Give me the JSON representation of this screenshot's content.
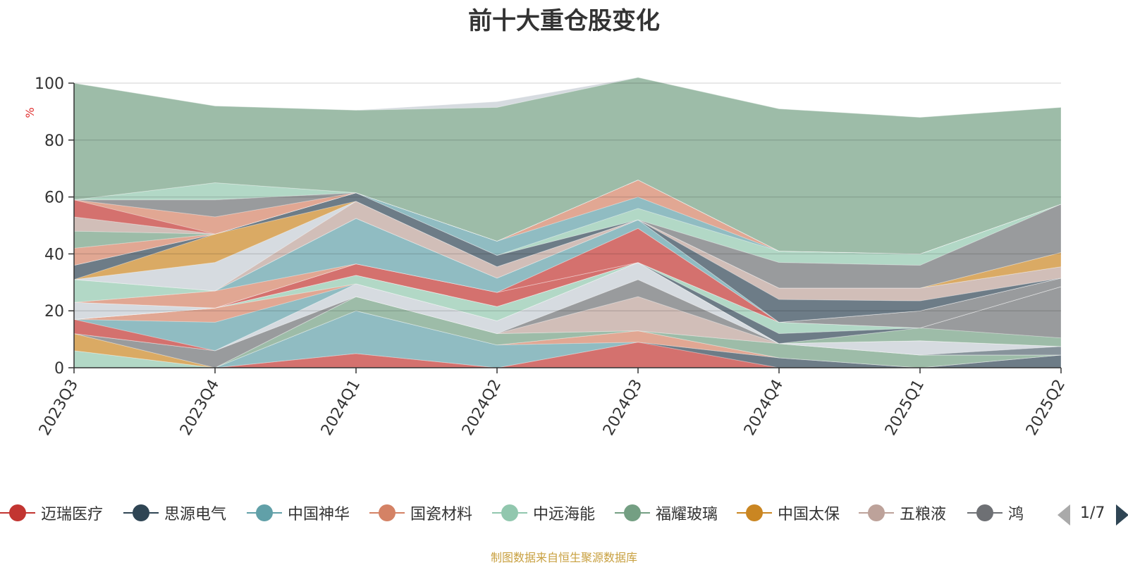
{
  "title": "前十大重仓股变化",
  "source": "制图数据来自恒生聚源数据库",
  "pager": {
    "text": "1/7"
  },
  "legend": {
    "items": [
      {
        "name": "迈瑞医疗",
        "color": "#c23531"
      },
      {
        "name": "思源电气",
        "color": "#2f4554"
      },
      {
        "name": "中国神华",
        "color": "#61a0a8"
      },
      {
        "name": "国瓷材料",
        "color": "#d48265"
      },
      {
        "name": "中远海能",
        "color": "#91c7ae"
      },
      {
        "name": "福耀玻璃",
        "color": "#749f83"
      },
      {
        "name": "中国太保",
        "color": "#ca8622"
      },
      {
        "name": "五粮液",
        "color": "#bda29a"
      },
      {
        "name": "鸿",
        "color": "#6e7074"
      }
    ]
  },
  "chart_data": {
    "type": "area",
    "stacked": true,
    "title": "前十大重仓股变化",
    "ylabel": "%",
    "ylim": [
      0,
      100
    ],
    "yticks": [
      0,
      20,
      40,
      60,
      80,
      100
    ],
    "grid": true,
    "categories": [
      "2023Q3",
      "2023Q4",
      "2024Q1",
      "2024Q2",
      "2024Q3",
      "2024Q4",
      "2025Q1",
      "2025Q2"
    ],
    "series": [
      {
        "name": "迈瑞医疗",
        "color": "#c23531",
        "values": [
          0,
          0,
          5,
          0,
          9,
          0,
          0,
          0
        ]
      },
      {
        "name": "思源电气",
        "color": "#2f4554",
        "values": [
          0,
          0,
          0,
          0,
          0,
          3.5,
          0,
          4.5
        ]
      },
      {
        "name": "中国神华",
        "color": "#61a0a8",
        "values": [
          0,
          0,
          15,
          8,
          0,
          0,
          0,
          0
        ]
      },
      {
        "name": "国瓷材料",
        "color": "#d48265",
        "values": [
          0,
          0,
          0,
          0,
          4,
          0,
          0,
          0
        ]
      },
      {
        "name": "中远海能",
        "color": "#91c7ae",
        "values": [
          6,
          0,
          0,
          0,
          0,
          0,
          0,
          0
        ]
      },
      {
        "name": "福耀玻璃",
        "color": "#749f83",
        "values": [
          0,
          0,
          5,
          4,
          0,
          5,
          4.5,
          0
        ]
      },
      {
        "name": "中国太保",
        "color": "#ca8622",
        "values": [
          6,
          0,
          0,
          0,
          0,
          0,
          0,
          0
        ]
      },
      {
        "name": "五粮液",
        "color": "#bda29a",
        "values": [
          0,
          0,
          0,
          0,
          12,
          0,
          0,
          0
        ]
      },
      {
        "name": "",
        "color": "#6e7074",
        "values": [
          0,
          6,
          0,
          0,
          6,
          0,
          0,
          0
        ]
      },
      {
        "name": "",
        "color": "#546570",
        "values": [
          0,
          0,
          0,
          0,
          0,
          0,
          0,
          3
        ]
      },
      {
        "name": "",
        "color": "#c4ccd3",
        "values": [
          0,
          0,
          4.5,
          4.5,
          6,
          0,
          5,
          0
        ]
      },
      {
        "name": "",
        "color": "#c23531",
        "values": [
          5,
          0,
          0,
          0,
          0,
          0,
          0,
          0
        ]
      },
      {
        "name": "",
        "color": "#61a0a8",
        "values": [
          0,
          10,
          0,
          0,
          0,
          0,
          0,
          0
        ]
      },
      {
        "name": "",
        "color": "#d48265",
        "values": [
          0,
          5,
          0,
          0,
          0,
          0,
          0,
          0
        ]
      },
      {
        "name": "",
        "color": "#91c7ae",
        "values": [
          0,
          0,
          3,
          5,
          0,
          0,
          0,
          0
        ]
      },
      {
        "name": "",
        "color": "#749f83",
        "values": [
          0,
          0,
          0,
          0,
          0,
          0,
          4.5,
          3
        ]
      },
      {
        "name": "",
        "color": "#6e7074",
        "values": [
          0,
          0,
          0,
          0,
          0,
          0,
          0,
          18
        ]
      },
      {
        "name": "",
        "color": "#2f4554",
        "values": [
          0,
          0,
          0,
          0,
          0,
          3.5,
          0,
          0
        ]
      },
      {
        "name": "",
        "color": "#91c7ae",
        "values": [
          0,
          0,
          0,
          0,
          0,
          4,
          0,
          0
        ]
      },
      {
        "name": "",
        "color": "#c23531",
        "values": [
          0,
          0,
          4,
          5,
          0,
          0,
          0,
          0
        ]
      },
      {
        "name": "",
        "color": "#c4ccd3",
        "values": [
          6,
          0,
          0,
          0,
          0,
          0,
          0,
          0
        ]
      },
      {
        "name": "",
        "color": "#6e7074",
        "values": [
          0,
          0,
          0,
          0,
          0,
          0,
          6,
          3
        ]
      },
      {
        "name": "",
        "color": "#c23531",
        "values": [
          0,
          0,
          0,
          0,
          12,
          0,
          0,
          0
        ]
      },
      {
        "name": "",
        "color": "#d48265",
        "values": [
          0,
          6,
          0,
          0,
          0,
          0,
          0,
          0
        ]
      },
      {
        "name": "",
        "color": "#61a0a8",
        "values": [
          0,
          0,
          16,
          5,
          3,
          0,
          0,
          0
        ]
      },
      {
        "name": "",
        "color": "#91c7ae",
        "values": [
          8,
          0,
          0,
          0,
          0,
          0,
          0,
          0
        ]
      },
      {
        "name": "",
        "color": "#2f4554",
        "values": [
          0,
          0,
          0,
          0,
          0,
          8,
          3.5,
          0
        ]
      },
      {
        "name": "",
        "color": "#bda29a",
        "values": [
          0,
          0,
          6,
          4,
          0,
          4,
          4.5,
          4
        ]
      },
      {
        "name": "",
        "color": "#c4ccd3",
        "values": [
          0,
          10,
          0,
          0,
          0,
          0,
          0,
          0
        ]
      },
      {
        "name": "",
        "color": "#ca8622",
        "values": [
          0,
          10,
          0,
          0,
          0,
          0,
          0,
          5
        ]
      },
      {
        "name": "",
        "color": "#2f4554",
        "values": [
          5,
          0,
          3,
          4,
          0,
          0,
          0,
          0
        ]
      },
      {
        "name": "",
        "color": "#6e7074",
        "values": [
          0,
          0,
          0,
          0,
          0,
          9,
          8,
          17
        ]
      },
      {
        "name": "",
        "color": "#91c7ae",
        "values": [
          0,
          0,
          0,
          0,
          4,
          4,
          4,
          0
        ]
      },
      {
        "name": "",
        "color": "#61a0a8",
        "values": [
          0,
          0,
          0,
          5,
          4,
          0,
          0,
          0
        ]
      },
      {
        "name": "",
        "color": "#d48265",
        "values": [
          6,
          0,
          0,
          0,
          6,
          0,
          0,
          0
        ]
      },
      {
        "name": "",
        "color": "#749f83",
        "values": [
          6,
          0,
          0,
          0,
          0,
          0,
          0,
          0
        ]
      },
      {
        "name": "",
        "color": "#bda29a",
        "values": [
          5,
          0,
          0,
          0,
          0,
          0,
          0,
          0
        ]
      },
      {
        "name": "",
        "color": "#c23531",
        "values": [
          6,
          0,
          0,
          0,
          0,
          0,
          0,
          0
        ]
      },
      {
        "name": "",
        "color": "#d48265",
        "values": [
          0,
          6,
          0,
          0,
          0,
          0,
          0,
          0
        ]
      },
      {
        "name": "",
        "color": "#6e7074",
        "values": [
          0,
          6,
          0,
          0,
          0,
          0,
          0,
          0
        ]
      },
      {
        "name": "",
        "color": "#91c7ae",
        "values": [
          0,
          6,
          0,
          0,
          0,
          0,
          0,
          0
        ]
      },
      {
        "name": "",
        "color": "#bda29a",
        "values": [
          0,
          0,
          0,
          0,
          0,
          0,
          0,
          0
        ]
      },
      {
        "name": "",
        "color": "#749f83",
        "values": [
          41,
          27,
          29,
          47,
          36,
          50,
          48,
          34
        ]
      },
      {
        "name": "",
        "color": "#c4ccd3",
        "values": [
          0,
          0,
          0,
          2,
          0,
          0,
          0,
          0
        ]
      }
    ]
  }
}
